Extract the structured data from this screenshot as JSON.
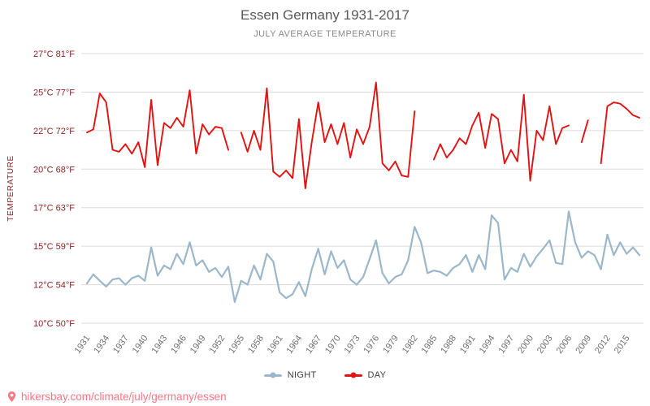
{
  "header": {
    "title": "Essen Germany 1931-2017",
    "subtitle": "JULY AVERAGE TEMPERATURE"
  },
  "footer": {
    "url": "hikersbay.com/climate/july/germany/essen"
  },
  "chart_data": {
    "type": "line",
    "title": "Essen Germany 1931-2017",
    "subtitle": "JULY AVERAGE TEMPERATURE",
    "ylabel": "TEMPERATURE",
    "xlabel": "",
    "grid": true,
    "legend_position": "bottom",
    "x_start": 1931,
    "x_end": 2017,
    "x_tick_labels": [
      1931,
      1934,
      1937,
      1940,
      1943,
      1946,
      1949,
      1952,
      1955,
      1958,
      1961,
      1964,
      1967,
      1970,
      1973,
      1976,
      1979,
      1982,
      1985,
      1988,
      1991,
      1994,
      1997,
      2000,
      2003,
      2006,
      2009,
      2012,
      2015
    ],
    "y_ticks": [
      {
        "c": 10,
        "f": 50
      },
      {
        "c": 12,
        "f": 54
      },
      {
        "c": 15,
        "f": 59
      },
      {
        "c": 17,
        "f": 63
      },
      {
        "c": 20,
        "f": 68
      },
      {
        "c": 22,
        "f": 72
      },
      {
        "c": 25,
        "f": 77
      },
      {
        "c": 27,
        "f": 81
      }
    ],
    "y_tick_format": "{c}°C {f}°F",
    "ylim": [
      10,
      27
    ],
    "series": [
      {
        "name": "NIGHT",
        "color": "#9bb7c9",
        "width": 2.2,
        "values": [
          12.1,
          12.8,
          12.3,
          11.9,
          12.4,
          12.5,
          12.0,
          12.5,
          12.7,
          12.3,
          14.9,
          12.7,
          13.5,
          13.2,
          14.4,
          13.6,
          15.2,
          13.5,
          13.9,
          13.0,
          13.3,
          12.6,
          13.4,
          11.1,
          12.3,
          12.0,
          13.5,
          12.4,
          14.4,
          13.8,
          11.6,
          11.3,
          11.5,
          12.2,
          11.4,
          13.2,
          14.8,
          12.8,
          14.6,
          13.3,
          13.9,
          12.4,
          12.0,
          12.6,
          14.0,
          15.3,
          12.9,
          12.1,
          12.6,
          12.8,
          13.9,
          16.0,
          15.2,
          12.9,
          13.1,
          13.0,
          12.7,
          13.3,
          13.6,
          14.3,
          13.0,
          14.3,
          13.2,
          16.6,
          16.2,
          12.4,
          13.3,
          13.0,
          14.4,
          13.4,
          14.2,
          14.8,
          15.3,
          13.7,
          13.6,
          16.8,
          15.2,
          14.1,
          14.6,
          14.3,
          13.2,
          15.6,
          14.3,
          15.2,
          14.4,
          14.9,
          14.3
        ]
      },
      {
        "name": "DAY",
        "color": "#e31212",
        "width": 1.9,
        "values": [
          21.9,
          22.1,
          24.9,
          24.2,
          21.0,
          20.9,
          21.3,
          20.8,
          21.4,
          20.1,
          24.4,
          20.2,
          22.6,
          22.2,
          23.0,
          22.3,
          25.1,
          20.8,
          22.5,
          21.8,
          22.3,
          22.2,
          21.0,
          null,
          21.9,
          20.9,
          22.0,
          21.0,
          25.2,
          19.8,
          19.4,
          19.9,
          19.3,
          22.9,
          18.5,
          21.4,
          24.2,
          21.4,
          22.5,
          21.3,
          22.6,
          20.6,
          22.1,
          21.3,
          22.3,
          25.5,
          20.3,
          19.9,
          20.4,
          19.5,
          19.4,
          23.5,
          null,
          null,
          20.5,
          21.3,
          20.6,
          21.0,
          21.6,
          21.3,
          22.4,
          23.4,
          21.1,
          23.3,
          22.9,
          20.3,
          21.0,
          20.4,
          24.8,
          19.1,
          22.0,
          21.5,
          23.9,
          21.3,
          22.2,
          22.4,
          null,
          21.4,
          22.8,
          null,
          20.3,
          23.9,
          24.2,
          24.1,
          23.7,
          23.2,
          23.0
        ]
      }
    ],
    "colors": {
      "grid": "#dcdcdc",
      "y_axis_text": "#8b2323",
      "x_axis_text": "#6e6e6e",
      "title": "#58585a",
      "subtitle": "#8a8a8a",
      "footer_link": "#f97884",
      "legend_text": "#3d3d3d"
    }
  }
}
